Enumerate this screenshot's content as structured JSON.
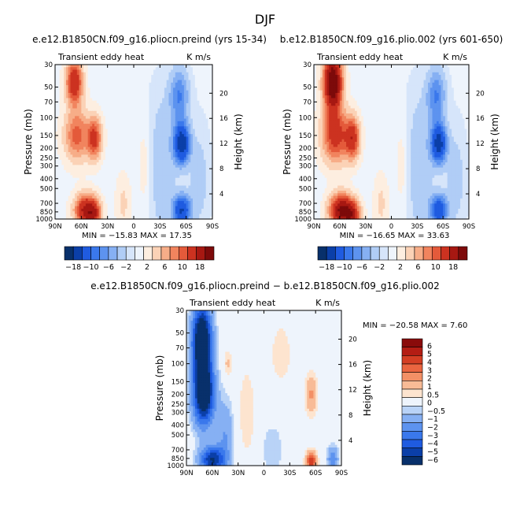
{
  "page": {
    "title": "DJF"
  },
  "palette": {
    "fields": [
      "#08306b",
      "#0b3fa8",
      "#1f5be0",
      "#3a78ec",
      "#5d93ef",
      "#86b0f3",
      "#b0cdf6",
      "#d6e5fa",
      "#eef4fc",
      "#fdeee0",
      "#fbd2b6",
      "#f7ad88",
      "#f1845e",
      "#e45a3a",
      "#cc3220",
      "#a71812",
      "#7d0a0a"
    ],
    "diff": [
      "#08306b",
      "#0b3fa8",
      "#1f5be0",
      "#3a78ec",
      "#5d93ef",
      "#86b0f3",
      "#b9d3f7",
      "#eef4fc",
      "#fde4cf",
      "#f8bb96",
      "#f39066",
      "#ea6540",
      "#d43e24",
      "#b41d14",
      "#8a0b0b"
    ]
  },
  "chart_data": [
    {
      "type": "heatmap",
      "title": "e.e12.B1850CN.f09_g16.pliocn.preind (yrs 15-34)",
      "subtitle_left": "Transient eddy heat",
      "units": "K m/s",
      "xlabel": "",
      "ylabel": "Pressure (mb)",
      "ylabel_right": "Height (km)",
      "x_ticks": [
        "90N",
        "60N",
        "30N",
        "0",
        "30S",
        "60S",
        "90S"
      ],
      "y_ticks": [
        "30",
        "50",
        "70",
        "100",
        "150",
        "200",
        "250",
        "300",
        "400",
        "500",
        "700",
        "850",
        "1000"
      ],
      "y_ticks_right": [
        "20",
        "16",
        "12",
        "8",
        "4"
      ],
      "xlim": [
        90,
        -90
      ],
      "ylim": [
        1000,
        30
      ],
      "stats": {
        "min_label": "MIN =",
        "min": "−15.83",
        "max_label": "MAX =",
        "max": "17.35"
      },
      "features": [
        {
          "lat": 68,
          "p": 45,
          "amp": 14,
          "slat": 9,
          "slp": 0.5
        },
        {
          "lat": 65,
          "p": 150,
          "amp": 9,
          "slat": 14,
          "slp": 0.55
        },
        {
          "lat": 45,
          "p": 160,
          "amp": 11,
          "slat": 8,
          "slp": 0.45
        },
        {
          "lat": 55,
          "p": 820,
          "amp": 15,
          "slat": 12,
          "slp": 0.35
        },
        {
          "lat": 45,
          "p": 900,
          "amp": 9,
          "slat": 8,
          "slp": 0.3
        },
        {
          "lat": 12,
          "p": 700,
          "amp": 2.5,
          "slat": 8,
          "slp": 0.6
        },
        {
          "lat": -15,
          "p": 300,
          "amp": 2.5,
          "slat": 10,
          "slp": 1.2
        },
        {
          "lat": -55,
          "p": 180,
          "amp": -17,
          "slat": 9,
          "slp": 0.45
        },
        {
          "lat": -52,
          "p": 60,
          "amp": -8,
          "slat": 11,
          "slp": 0.6
        },
        {
          "lat": -55,
          "p": 820,
          "amp": -14,
          "slat": 10,
          "slp": 0.35
        },
        {
          "lat": -30,
          "p": 300,
          "amp": -4,
          "slat": 18,
          "slp": 1.6
        },
        {
          "lat": -75,
          "p": 400,
          "amp": -3,
          "slat": 12,
          "slp": 1.2
        }
      ]
    },
    {
      "type": "heatmap",
      "title": "b.e12.B1850CN.f09_g16.plio.002 (yrs 601-650)",
      "subtitle_left": "Transient eddy heat",
      "units": "K m/s",
      "xlabel": "",
      "ylabel": "Pressure (mb)",
      "ylabel_right": "Height (km)",
      "x_ticks": [
        "90N",
        "60N",
        "30N",
        "0",
        "30S",
        "60S",
        "90S"
      ],
      "y_ticks": [
        "30",
        "50",
        "70",
        "100",
        "150",
        "200",
        "250",
        "300",
        "400",
        "500",
        "700",
        "850",
        "1000"
      ],
      "y_ticks_right": [
        "20",
        "16",
        "12",
        "8",
        "4"
      ],
      "xlim": [
        90,
        -90
      ],
      "ylim": [
        1000,
        30
      ],
      "stats": {
        "min_label": "MIN =",
        "min": "−16.65",
        "max_label": "MAX =",
        "max": "33.63"
      },
      "features": [
        {
          "lat": 68,
          "p": 45,
          "amp": 24,
          "slat": 10,
          "slp": 0.6
        },
        {
          "lat": 65,
          "p": 150,
          "amp": 12,
          "slat": 15,
          "slp": 0.6
        },
        {
          "lat": 45,
          "p": 160,
          "amp": 12,
          "slat": 8,
          "slp": 0.45
        },
        {
          "lat": 58,
          "p": 820,
          "amp": 19,
          "slat": 13,
          "slp": 0.35
        },
        {
          "lat": 45,
          "p": 920,
          "amp": 11,
          "slat": 9,
          "slp": 0.3
        },
        {
          "lat": 12,
          "p": 700,
          "amp": 2.5,
          "slat": 8,
          "slp": 0.6
        },
        {
          "lat": -15,
          "p": 300,
          "amp": 2.5,
          "slat": 10,
          "slp": 1.2
        },
        {
          "lat": -55,
          "p": 180,
          "amp": -16,
          "slat": 9,
          "slp": 0.45
        },
        {
          "lat": -52,
          "p": 60,
          "amp": -8,
          "slat": 11,
          "slp": 0.6
        },
        {
          "lat": -55,
          "p": 820,
          "amp": -13,
          "slat": 10,
          "slp": 0.35
        },
        {
          "lat": -30,
          "p": 300,
          "amp": -4,
          "slat": 18,
          "slp": 1.6
        },
        {
          "lat": -75,
          "p": 400,
          "amp": -3,
          "slat": 12,
          "slp": 1.2
        }
      ]
    },
    {
      "type": "heatmap",
      "title": "e.e12.B1850CN.f09_g16.pliocn.preind − b.e12.B1850CN.f09_g16.plio.002",
      "subtitle_left": "Transient eddy heat",
      "units": "K m/s",
      "xlabel": "",
      "ylabel": "Pressure (mb)",
      "ylabel_right": "Height (km)",
      "x_ticks": [
        "90N",
        "60N",
        "30N",
        "0",
        "30S",
        "60S",
        "90S"
      ],
      "y_ticks": [
        "30",
        "50",
        "70",
        "100",
        "150",
        "200",
        "250",
        "300",
        "400",
        "500",
        "700",
        "850",
        "1000"
      ],
      "y_ticks_right": [
        "20",
        "16",
        "12",
        "8",
        "4"
      ],
      "xlim": [
        90,
        -90
      ],
      "ylim": [
        1000,
        30
      ],
      "stats": {
        "min_label": "MIN =",
        "min": "−20.58",
        "max_label": "MAX =",
        "max": "7.60"
      },
      "features": [
        {
          "lat": 72,
          "p": 60,
          "amp": -9,
          "slat": 11,
          "slp": 0.8
        },
        {
          "lat": 70,
          "p": 200,
          "amp": -8,
          "slat": 12,
          "slp": 0.7
        },
        {
          "lat": 60,
          "p": 880,
          "amp": -6,
          "slat": 14,
          "slp": 0.3
        },
        {
          "lat": 45,
          "p": 500,
          "amp": -2,
          "slat": 10,
          "slp": 0.8
        },
        {
          "lat": 42,
          "p": 100,
          "amp": 1.2,
          "slat": 5,
          "slp": 0.3
        },
        {
          "lat": 20,
          "p": 300,
          "amp": 0.8,
          "slat": 12,
          "slp": 1.2
        },
        {
          "lat": -20,
          "p": 80,
          "amp": 0.8,
          "slat": 14,
          "slp": 0.8
        },
        {
          "lat": -55,
          "p": 200,
          "amp": 2.2,
          "slat": 7,
          "slp": 0.45
        },
        {
          "lat": -55,
          "p": 900,
          "amp": 5,
          "slat": 6,
          "slp": 0.2
        },
        {
          "lat": -80,
          "p": 880,
          "amp": -3,
          "slat": 6,
          "slp": 0.3
        },
        {
          "lat": -10,
          "p": 700,
          "amp": -1,
          "slat": 12,
          "slp": 0.6
        }
      ]
    }
  ],
  "colorbars": [
    {
      "levels": [
        "−18",
        "−10",
        "−6",
        "−2",
        "2",
        "6",
        "10",
        "18"
      ]
    },
    {
      "levels": [
        "−18",
        "−10",
        "−6",
        "−2",
        "2",
        "6",
        "10",
        "18"
      ]
    },
    {
      "levels": [
        "6",
        "5",
        "4",
        "3",
        "2",
        "1",
        "0.5",
        "0",
        "−0.5",
        "−1",
        "−2",
        "−3",
        "−4",
        "−5",
        "−6"
      ]
    }
  ]
}
